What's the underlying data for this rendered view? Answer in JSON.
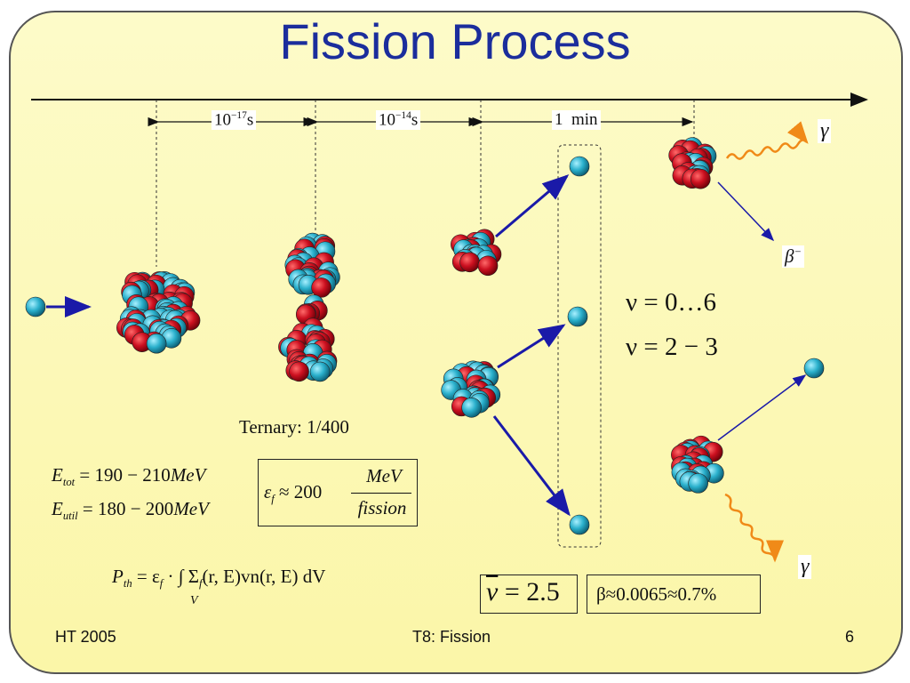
{
  "title": "Fission Process",
  "timeline": {
    "interval_1": "10",
    "interval_1_exp": "−17",
    "interval_1_unit": "s",
    "interval_2": "10",
    "interval_2_exp": "−14",
    "interval_2_unit": "s",
    "interval_3": "1  min"
  },
  "labels": {
    "gamma_top": "γ",
    "beta": "β",
    "beta_sup": "−",
    "gamma_bottom": "γ",
    "ternary": "Ternary: 1/400"
  },
  "equations": {
    "nu_range": "ν = 0…6",
    "nu_typical": "ν = 2 − 3",
    "e_tot_var": "E",
    "e_tot_sub": "tot",
    "e_tot_val": " = 190 − 210",
    "e_tot_unit": "MeV",
    "e_util_var": "E",
    "e_util_sub": "util",
    "e_util_val": " = 180 − 200",
    "e_util_unit": "MeV",
    "eps_var": "ε",
    "eps_sub": "f",
    "eps_approx": "≈ 200",
    "eps_num": "MeV",
    "eps_den": "fission",
    "pth": "P",
    "pth_sub": "th",
    "pth_rhs": "= ε",
    "pth_rhs_sub": "f",
    "pth_rest": " · ∫ Σ",
    "pth_sigma_sub": "f",
    "pth_tail": "(r, E)vn(r, E) dV",
    "pth_int_limit": "V",
    "nu_bar": "ν",
    "nu_bar_val": "= 2.5",
    "beta_value": "β≈0.0065≈0.7%"
  },
  "footer": {
    "left": "HT 2005",
    "center": "T8: Fission",
    "right": "6"
  },
  "colors": {
    "title": "#1b2d9c",
    "proton": "#cc1020",
    "neutron": "#2ab0cc",
    "arrow": "#1a1aa8",
    "gamma_wave": "#f08a18",
    "background": "#fbf6a8"
  }
}
